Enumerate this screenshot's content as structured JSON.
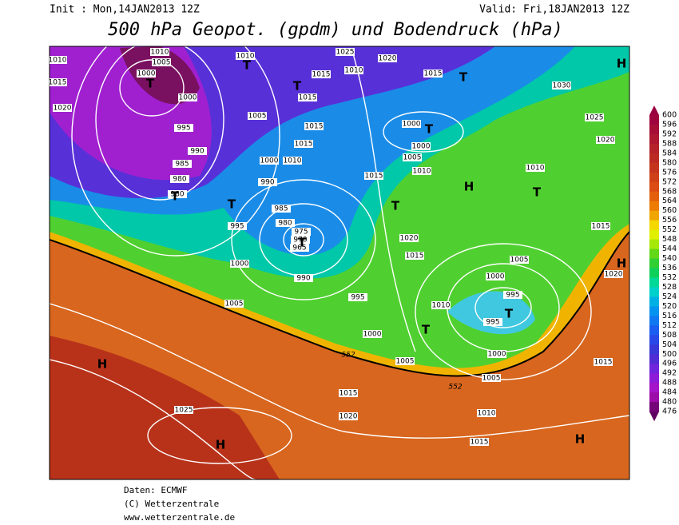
{
  "header": {
    "init": "Init : Mon,14JAN2013 12Z",
    "valid": "Valid: Fri,18JAN2013 12Z",
    "title": "500 hPa Geopot. (gpdm) und Bodendruck (hPa)"
  },
  "footer": {
    "source": "Daten: ECMWF",
    "copyright": "(C) Wetterzentrale",
    "url": "www.wetterzentrale.de"
  },
  "colorbar": {
    "labels": [
      "600",
      "596",
      "592",
      "588",
      "584",
      "580",
      "576",
      "572",
      "568",
      "564",
      "560",
      "556",
      "552",
      "548",
      "544",
      "540",
      "536",
      "532",
      "528",
      "524",
      "520",
      "516",
      "512",
      "508",
      "504",
      "500",
      "496",
      "492",
      "488",
      "484",
      "480",
      "476"
    ]
  },
  "isobar_labels": [
    "1010",
    "1010",
    "1005",
    "1000",
    "1000",
    "1015",
    "1020",
    "995",
    "990",
    "985",
    "980",
    "980",
    "1010",
    "1025",
    "1020",
    "1015",
    "1015",
    "1010",
    "1015",
    "1005",
    "1015",
    "1015",
    "1000",
    "1010",
    "990",
    "985",
    "980",
    "975",
    "970",
    "965",
    "995",
    "1000",
    "990",
    "995",
    "1005",
    "1000",
    "1000",
    "1000",
    "1005",
    "1010",
    "1015",
    "1010",
    "1030",
    "1025",
    "1020",
    "1015",
    "1020",
    "1015",
    "1005",
    "1000",
    "995",
    "995",
    "1010",
    "1000",
    "1005",
    "552",
    "552",
    "1005",
    "1015",
    "1015",
    "1020",
    "1010",
    "1015",
    "1025",
    "1020"
  ],
  "pressure_centers": [
    "T",
    "T",
    "T",
    "T",
    "T",
    "T",
    "T",
    "T",
    "T",
    "T",
    "T",
    "T",
    "H",
    "H",
    "H",
    "H",
    "H",
    "H"
  ]
}
